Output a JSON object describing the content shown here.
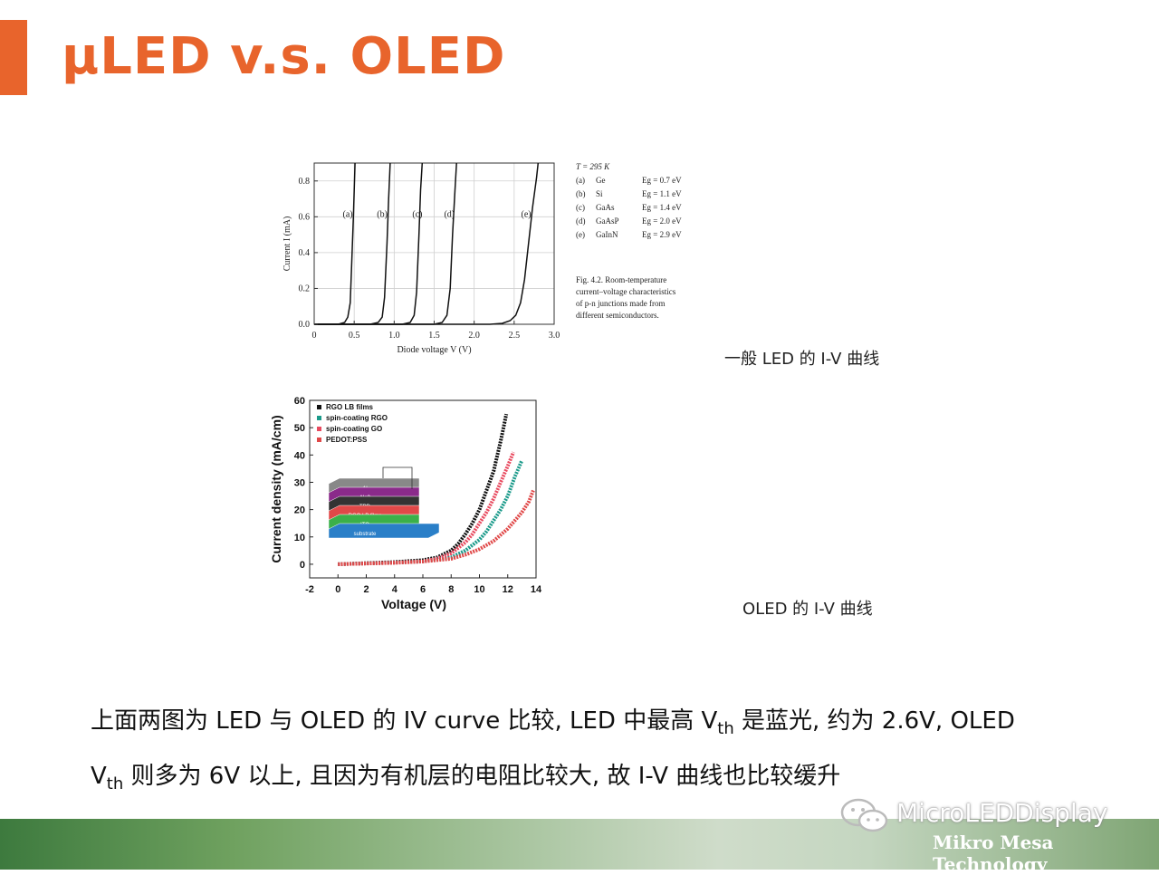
{
  "slide": {
    "title": "μLED v.s. OLED",
    "caption_led": "一般 LED 的 I-V 曲线",
    "caption_oled": "OLED 的 I-V 曲线",
    "para_line1_a": "上面两图为 LED 与 OLED 的 IV curve 比较, LED 中最高 V",
    "para_line1_sub": "th",
    "para_line1_b": " 是蓝光, 约为 2.6V, OLED",
    "para_line2_a": "V",
    "para_line2_sub": "th",
    "para_line2_b": " 则多为 6V 以上, 且因为有机层的电阻比较大, 故 I-V 曲线也比较缓升",
    "watermark": "MicroLEDDisplay",
    "company": "Mikro Mesa Technology",
    "accent_color": "#e8642c",
    "watermark_icon": "wechat-icon"
  },
  "chart_data": [
    {
      "type": "line",
      "xlabel": "Diode voltage  V  (V)",
      "ylabel": "Current  I  (mA)",
      "xlim": [
        0,
        3.0
      ],
      "ylim": [
        0,
        0.9
      ],
      "x_ticks": [
        "0",
        "0.5",
        "1.0",
        "1.5",
        "2.0",
        "2.5",
        "3.0"
      ],
      "y_ticks": [
        "0.0",
        "0.2",
        "0.4",
        "0.6",
        "0.8"
      ],
      "grid": true,
      "legend": {
        "header": "T = 295 K",
        "entries": [
          {
            "label": "(a)",
            "material": "Ge",
            "eg": "Eg = 0.7 eV"
          },
          {
            "label": "(b)",
            "material": "Si",
            "eg": "Eg = 1.1 eV"
          },
          {
            "label": "(c)",
            "material": "GaAs",
            "eg": "Eg = 1.4 eV"
          },
          {
            "label": "(d)",
            "material": "GaAsP",
            "eg": "Eg = 2.0 eV"
          },
          {
            "label": "(e)",
            "material": "GaInN",
            "eg": "Eg = 2.9 eV"
          }
        ]
      },
      "caption_lines": [
        "Fig.   4.2.   Room-temperature",
        "current–voltage   characteristics",
        "of   p-n   junctions   made   from",
        "different semiconductors."
      ],
      "series": [
        {
          "name": "(a)",
          "label_x": 0.42,
          "points": [
            [
              0.0,
              0.0
            ],
            [
              0.3,
              0.0
            ],
            [
              0.38,
              0.01
            ],
            [
              0.42,
              0.04
            ],
            [
              0.45,
              0.12
            ],
            [
              0.47,
              0.35
            ],
            [
              0.49,
              0.6
            ],
            [
              0.51,
              0.9
            ]
          ]
        },
        {
          "name": "(b)",
          "label_x": 0.85,
          "points": [
            [
              0.0,
              0.0
            ],
            [
              0.7,
              0.0
            ],
            [
              0.8,
              0.01
            ],
            [
              0.85,
              0.04
            ],
            [
              0.88,
              0.15
            ],
            [
              0.91,
              0.45
            ],
            [
              0.93,
              0.7
            ],
            [
              0.95,
              0.9
            ]
          ]
        },
        {
          "name": "(c)",
          "label_x": 1.29,
          "points": [
            [
              0.0,
              0.0
            ],
            [
              1.1,
              0.0
            ],
            [
              1.2,
              0.01
            ],
            [
              1.25,
              0.05
            ],
            [
              1.28,
              0.18
            ],
            [
              1.31,
              0.5
            ],
            [
              1.33,
              0.75
            ],
            [
              1.35,
              0.9
            ]
          ]
        },
        {
          "name": "(d)",
          "label_x": 1.69,
          "points": [
            [
              0.0,
              0.0
            ],
            [
              1.5,
              0.0
            ],
            [
              1.6,
              0.01
            ],
            [
              1.66,
              0.05
            ],
            [
              1.7,
              0.2
            ],
            [
              1.73,
              0.5
            ],
            [
              1.76,
              0.75
            ],
            [
              1.78,
              0.9
            ]
          ]
        },
        {
          "name": "(e)",
          "label_x": 2.65,
          "points": [
            [
              0.0,
              0.0
            ],
            [
              2.2,
              0.0
            ],
            [
              2.35,
              0.005
            ],
            [
              2.45,
              0.02
            ],
            [
              2.52,
              0.05
            ],
            [
              2.58,
              0.12
            ],
            [
              2.63,
              0.25
            ],
            [
              2.68,
              0.45
            ],
            [
              2.73,
              0.65
            ],
            [
              2.78,
              0.82
            ],
            [
              2.8,
              0.9
            ]
          ]
        }
      ]
    },
    {
      "type": "line",
      "xlabel": "Voltage (V)",
      "ylabel": "Current density (mA/cm)",
      "xlim": [
        -2,
        14
      ],
      "ylim": [
        -5,
        60
      ],
      "x_ticks": [
        "-2",
        "0",
        "2",
        "4",
        "6",
        "8",
        "10",
        "12",
        "14"
      ],
      "y_ticks": [
        "0",
        "10",
        "20",
        "30",
        "40",
        "50",
        "60"
      ],
      "grid": false,
      "legend_position": "top-left",
      "inset_layers": [
        "Al",
        "Alq3",
        "TPD",
        "RGO LB films",
        "ITO",
        "substrate"
      ],
      "series": [
        {
          "name": "RGO LB films",
          "color": "#111111",
          "points": [
            [
              0,
              0
            ],
            [
              4,
              0.8
            ],
            [
              6,
              1.5
            ],
            [
              7,
              2.5
            ],
            [
              8,
              5
            ],
            [
              8.5,
              7.5
            ],
            [
              9,
              11
            ],
            [
              9.5,
              15
            ],
            [
              10,
              20
            ],
            [
              10.5,
              27
            ],
            [
              11,
              34
            ],
            [
              11.5,
              45
            ],
            [
              11.9,
              55
            ]
          ]
        },
        {
          "name": "spin-coating RGO",
          "color": "#1a9a8a",
          "points": [
            [
              0,
              0
            ],
            [
              4,
              0.6
            ],
            [
              6,
              1
            ],
            [
              8,
              2.5
            ],
            [
              9,
              5
            ],
            [
              10,
              9
            ],
            [
              10.5,
              12
            ],
            [
              11,
              16
            ],
            [
              11.5,
              20
            ],
            [
              12,
              25
            ],
            [
              12.5,
              32
            ],
            [
              13,
              38
            ]
          ]
        },
        {
          "name": "spin-coating GO",
          "color": "#e84a5f",
          "points": [
            [
              0,
              0
            ],
            [
              4,
              0.6
            ],
            [
              6,
              1
            ],
            [
              7,
              2
            ],
            [
              8,
              4
            ],
            [
              9,
              8
            ],
            [
              9.5,
              11
            ],
            [
              10,
              15
            ],
            [
              10.5,
              19
            ],
            [
              11,
              24
            ],
            [
              11.5,
              30
            ],
            [
              12,
              36
            ],
            [
              12.4,
              41
            ]
          ]
        },
        {
          "name": "PEDOT:PSS",
          "color": "#e04848",
          "points": [
            [
              0,
              0
            ],
            [
              4,
              0.5
            ],
            [
              6,
              1
            ],
            [
              8,
              2
            ],
            [
              9,
              3.5
            ],
            [
              10,
              5.5
            ],
            [
              11,
              8.5
            ],
            [
              12,
              13
            ],
            [
              12.5,
              16
            ],
            [
              13,
              19
            ],
            [
              13.5,
              23
            ],
            [
              13.8,
              27
            ]
          ]
        }
      ]
    }
  ]
}
